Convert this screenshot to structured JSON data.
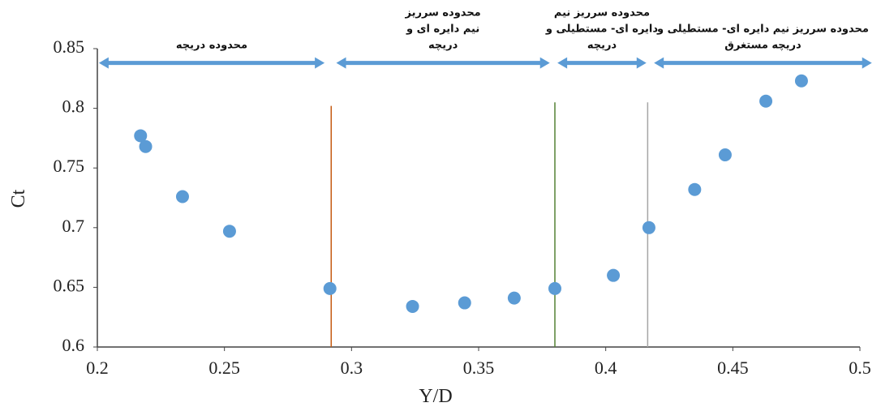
{
  "chart_data": {
    "type": "scatter",
    "x_label": "Y/D",
    "y_label": "Ct",
    "x": [
      0.217,
      0.219,
      0.2335,
      0.252,
      0.2915,
      0.324,
      0.3445,
      0.364,
      0.38,
      0.403,
      0.417,
      0.435,
      0.447,
      0.463,
      0.477
    ],
    "values": [
      0.777,
      0.768,
      0.726,
      0.697,
      0.649,
      0.634,
      0.637,
      0.641,
      0.649,
      0.66,
      0.7,
      0.732,
      0.761,
      0.806,
      0.823
    ],
    "color": "#5b9bd5",
    "xlim": [
      0.2,
      0.5
    ],
    "ylim": [
      0.6,
      0.85
    ],
    "xticks": [
      0.2,
      0.25,
      0.3,
      0.35,
      0.4,
      0.45,
      0.5
    ],
    "yticks": [
      0.6,
      0.65,
      0.7,
      0.75,
      0.8,
      0.85
    ],
    "grid": false,
    "vlines": [
      {
        "x": 0.292,
        "top": 0.802,
        "color": "#c55a11"
      },
      {
        "x": 0.38,
        "top": 0.805,
        "color": "#548235"
      },
      {
        "x": 0.4165,
        "top": 0.805,
        "color": "#a6a6a6"
      }
    ],
    "arrow_y": 0.838,
    "arrow_color": "#5b9bd5",
    "regions": [
      {
        "lines": [
          "محدوده دریچه"
        ],
        "from": 0.2006,
        "to": 0.2894
      },
      {
        "lines": [
          "محدوده سرریز",
          "نیم دایره ای و",
          "دریچه"
        ],
        "from": 0.294,
        "to": 0.378
      },
      {
        "lines": [
          "محدوده سرریز نیم",
          "دایره ای- مستطیلی و",
          "دریچه"
        ],
        "from": 0.381,
        "to": 0.416
      },
      {
        "lines": [
          "محدوده سرریز نیم دایره ای- مستطیلی و",
          "دریچه مستغرق"
        ],
        "from": 0.419,
        "to": 0.5047
      }
    ]
  }
}
